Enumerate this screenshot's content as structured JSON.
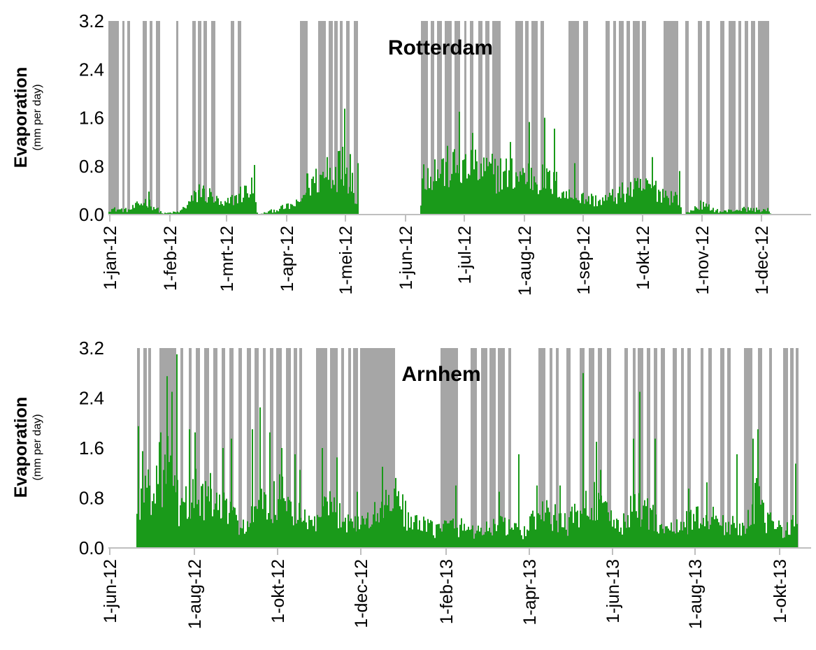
{
  "chart_data": [
    {
      "type": "bar",
      "title": "Rotterdam",
      "ylabel": "Evaporation",
      "ylabel_sub": "(mm per day)",
      "ylim": [
        0,
        3.2
      ],
      "y_ticks": [
        "0.0",
        "0.8",
        "1.6",
        "2.4",
        "3.2"
      ],
      "x_ticks": [
        "1-jan-12",
        "1-feb-12",
        "1-mrt-12",
        "1-apr-12",
        "1-mei-12",
        "1-jun-12",
        "1-jul-12",
        "1-aug-12",
        "1-sep-12",
        "1-okt-12",
        "1-nov-12",
        "1-dec-12"
      ],
      "grid": false,
      "colors": {
        "evaporation": "#1a9a1a",
        "gap": "#a6a6a6"
      },
      "series": [
        {
          "values_by_period": [
            {
              "period": "1-jan-12 to 5-jan-12",
              "approx_mm_per_day": 0.1
            },
            {
              "period": "jan-feb 2012",
              "approx_mm_per_day": 0.3
            },
            {
              "period": "end feb-mrt 2012",
              "approx_mm_per_day": 0.4
            },
            {
              "period": "mrt 2012",
              "approx_mm_per_day": 0.3
            },
            {
              "period": "apr 2012",
              "approx_mm_per_day": 0.8
            },
            {
              "period": "end apr 2012 (max)",
              "approx_mm_per_day": 1.75
            },
            {
              "period": "jun-aug 2012",
              "approx_mm_per_day": 0.9
            },
            {
              "period": "jul 2012 (max)",
              "approx_mm_per_day": 1.7
            },
            {
              "period": "sep 2012",
              "approx_mm_per_day": 0.5
            },
            {
              "period": "okt 2012",
              "approx_mm_per_day": 0.6
            },
            {
              "period": "nov 2012",
              "approx_mm_per_day": 0.15
            },
            {
              "period": "dec 2012",
              "approx_mm_per_day": 0.1
            }
          ]
        }
      ]
    },
    {
      "type": "bar",
      "title": "Arnhem",
      "ylabel": "Evaporation",
      "ylabel_sub": "(mm per day)",
      "ylim": [
        0,
        3.2
      ],
      "y_ticks": [
        "0.0",
        "0.8",
        "1.6",
        "2.4",
        "3.2"
      ],
      "x_ticks": [
        "1-jun-12",
        "1-aug-12",
        "1-okt-12",
        "1-dec-12",
        "1-feb-13",
        "1-apr-13",
        "1-jun-13",
        "1-aug-13",
        "1-okt-13"
      ],
      "grid": false,
      "colors": {
        "evaporation": "#1a9a1a",
        "gap": "#a6a6a6"
      },
      "series": [
        {
          "values_by_period": [
            {
              "period": "jun-jul 2012",
              "approx_mm_per_day": 1.2
            },
            {
              "period": "jul 2012 (max)",
              "approx_mm_per_day": 3.1
            },
            {
              "period": "aug-sep 2012",
              "approx_mm_per_day": 0.9
            },
            {
              "period": "okt-nov 2012",
              "approx_mm_per_day": 0.8
            },
            {
              "period": "dec 2012",
              "approx_mm_per_day": 0.7
            },
            {
              "period": "jan-mrt 2013",
              "approx_mm_per_day": 0.4
            },
            {
              "period": "apr-mei 2013",
              "approx_mm_per_day": 0.6
            },
            {
              "period": "mei 2013 (max)",
              "approx_mm_per_day": 2.8
            },
            {
              "period": "jun-jul 2013",
              "approx_mm_per_day": 0.9
            },
            {
              "period": "aug-sep 2013",
              "approx_mm_per_day": 0.8
            },
            {
              "period": "okt 2013",
              "approx_mm_per_day": 0.6
            }
          ]
        }
      ]
    }
  ]
}
